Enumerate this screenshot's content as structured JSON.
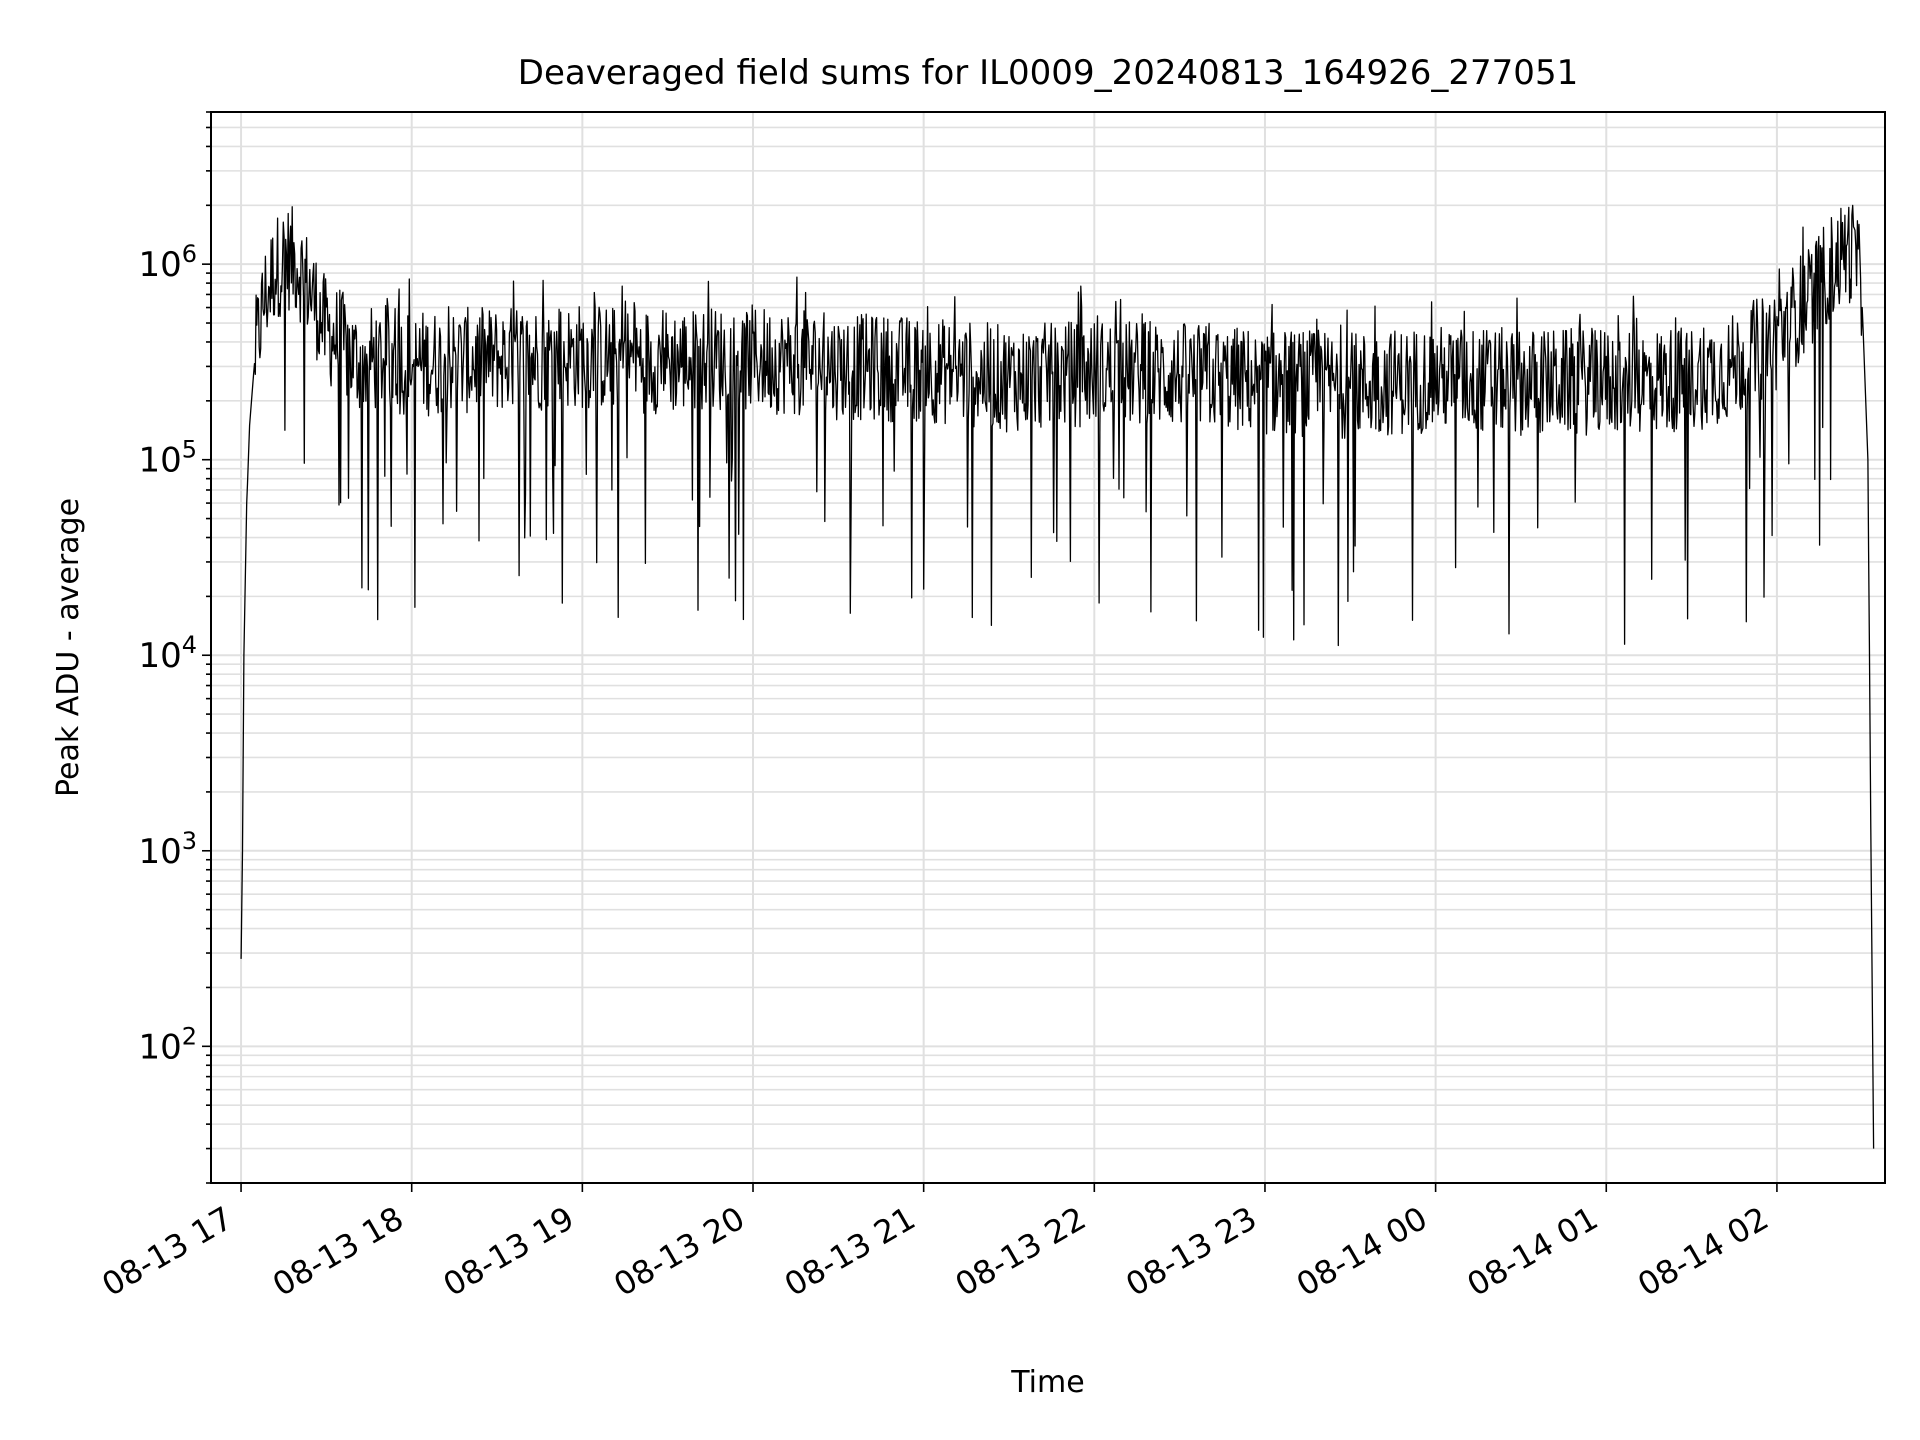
{
  "chart_data": {
    "type": "line",
    "title": "Deaveraged field sums for IL0009_20240813_164926_277051",
    "xlabel": "Time",
    "ylabel": "Peak ADU - average",
    "yscale": "log",
    "xlim": [
      "2024-08-13T16:49:26",
      "2024-08-14T02:38:00"
    ],
    "ylim": [
      20,
      6000000
    ],
    "grid": true,
    "legend": "none",
    "line_color": "#000000",
    "grid_color": "#e0e0e0",
    "x_ticks": [
      {
        "t": "2024-08-13T17:00:00",
        "label": "08-13 17"
      },
      {
        "t": "2024-08-13T18:00:00",
        "label": "08-13 18"
      },
      {
        "t": "2024-08-13T19:00:00",
        "label": "08-13 19"
      },
      {
        "t": "2024-08-13T20:00:00",
        "label": "08-13 20"
      },
      {
        "t": "2024-08-13T21:00:00",
        "label": "08-13 21"
      },
      {
        "t": "2024-08-13T22:00:00",
        "label": "08-13 22"
      },
      {
        "t": "2024-08-13T23:00:00",
        "label": "08-13 23"
      },
      {
        "t": "2024-08-14T00:00:00",
        "label": "08-14 00"
      },
      {
        "t": "2024-08-14T01:00:00",
        "label": "08-14 01"
      },
      {
        "t": "2024-08-14T02:00:00",
        "label": "08-14 02"
      }
    ],
    "y_ticks": [
      {
        "value": 100,
        "base": "10",
        "exp": "2"
      },
      {
        "value": 1000,
        "base": "10",
        "exp": "3"
      },
      {
        "value": 10000,
        "base": "10",
        "exp": "4"
      },
      {
        "value": 100000,
        "base": "10",
        "exp": "5"
      },
      {
        "value": 1000000,
        "base": "10",
        "exp": "6"
      }
    ],
    "series": [
      {
        "x": [
          "2024-08-13T17:00:00",
          "2024-08-13T17:00:30",
          "2024-08-13T17:01:00",
          "2024-08-13T17:02:00",
          "2024-08-13T17:03:00",
          "2024-08-13T17:05:00",
          "2024-08-13T17:08:00",
          "2024-08-13T17:12:00",
          "2024-08-13T17:16:00",
          "2024-08-13T17:20:00",
          "2024-08-13T17:25:00",
          "2024-08-13T17:30:00",
          "2024-08-13T17:35:00",
          "2024-08-13T17:40:00",
          "2024-08-13T17:50:00",
          "2024-08-13T18:00:00",
          "2024-08-13T18:20:00",
          "2024-08-13T18:40:00",
          "2024-08-13T19:00:00",
          "2024-08-13T19:30:00",
          "2024-08-13T20:00:00",
          "2024-08-13T20:30:00",
          "2024-08-13T21:00:00",
          "2024-08-13T21:30:00",
          "2024-08-13T22:00:00",
          "2024-08-13T22:30:00",
          "2024-08-13T23:00:00",
          "2024-08-13T23:30:00",
          "2024-08-14T00:00:00",
          "2024-08-14T00:30:00",
          "2024-08-14T01:00:00",
          "2024-08-14T01:30:00",
          "2024-08-14T01:45:00",
          "2024-08-14T02:00:00",
          "2024-08-14T02:10:00",
          "2024-08-14T02:20:00",
          "2024-08-14T02:25:00",
          "2024-08-14T02:28:00",
          "2024-08-14T02:30:00",
          "2024-08-14T02:32:00",
          "2024-08-14T02:33:00",
          "2024-08-14T02:34:00"
        ],
        "y": [
          280,
          1000,
          10000,
          60000,
          150000,
          350000,
          650000,
          950000,
          1100000,
          1000000,
          700000,
          450000,
          400000,
          320000,
          330000,
          310000,
          320000,
          330000,
          340000,
          320000,
          330000,
          300000,
          290000,
          260000,
          280000,
          270000,
          250000,
          240000,
          260000,
          250000,
          250000,
          260000,
          300000,
          420000,
          650000,
          1000000,
          1200000,
          1100000,
          600000,
          100000,
          1300,
          30
        ]
      }
    ]
  }
}
